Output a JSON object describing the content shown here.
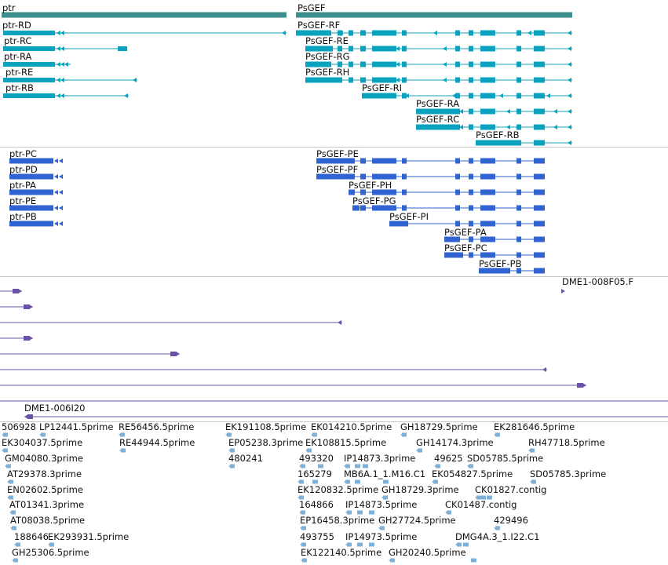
{
  "gene_track": {
    "genes": [
      "ptr",
      "PsGEF"
    ],
    "transcripts": [
      "ptr-RD",
      "ptr-RC",
      "ptr-RA",
      "ptr-RE",
      "ptr-RB",
      "PsGEF-RF",
      "PsGEF-RE",
      "PsGEF-RG",
      "PsGEF-RH",
      "PsGEF-RI",
      "PsGEF-RA",
      "PsGEF-RC",
      "PsGEF-RB"
    ],
    "color_gene": "#3a8e8c",
    "color_transcript": "#0aa3bf"
  },
  "protein_track": {
    "proteins": [
      "ptr-PC",
      "ptr-PD",
      "ptr-PA",
      "ptr-PE",
      "ptr-PB",
      "PsGEF-PE",
      "PsGEF-PF",
      "PsGEF-PH",
      "PsGEF-PG",
      "PsGEF-PI",
      "PsGEF-PA",
      "PsGEF-PC",
      "PsGEF-PB"
    ],
    "color": "#2f64d2"
  },
  "clone_track": {
    "labels": [
      "DME1-008F05.F",
      "DME1-006I20"
    ],
    "color": "#6a52a8"
  },
  "est_track": {
    "labels": [
      "506928",
      "LP12441.5prime",
      "RE56456.5prime",
      "EK191108.5prime",
      "EK014210.5prime",
      "GH18729.5prime",
      "EK281646.5prime",
      "EK304037.5prime",
      "RE44944.5prime",
      "EP05238.3prime",
      "EK108815.5prime",
      "GH14174.3prime",
      "RH47718.5prime",
      "GM04080.3prime",
      "480241",
      "493320",
      "IP14873.3prime",
      "49625",
      "SD05785.5prime",
      "AT29378.3prime",
      "165279",
      "MB6A.1_1.M16.C1",
      "EK054827.5prime",
      "SD05785.3prime",
      "EN02602.5prime",
      "EK120832.5prime",
      "GH18729.3prime",
      "CK01827.contig",
      "AT01341.3prime",
      "164866",
      "IP14873.5prime",
      "CK01487.contig",
      "AT08038.5prime",
      "EP16458.3prime",
      "GH27724.5prime",
      "429496",
      "188646",
      "EK293931.5prime",
      "493755",
      "IP14973.5prime",
      "DMG4A.3_1.I22.C1",
      "GH25306.5prime",
      "EK122140.5prime",
      "GH20240.5prime"
    ],
    "color": "#7fb0d8"
  }
}
